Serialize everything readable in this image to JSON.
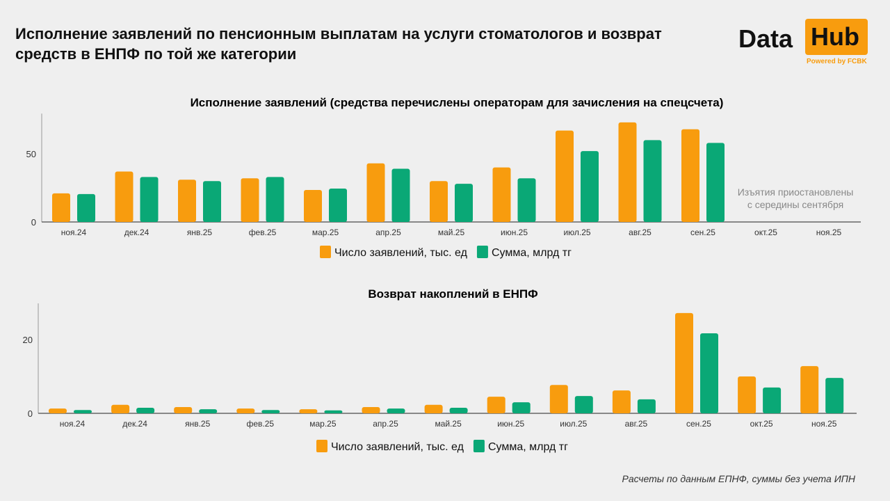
{
  "title": "Исполнение заявлений по пенсионным выплатам на услуги стоматологов и возврат средств в ЕНПФ по той же категории",
  "logo": {
    "left": "Data",
    "right": "Hub",
    "sub": "Powered by FCBK"
  },
  "colors": {
    "orange": "#f89c0e",
    "green": "#0aa876"
  },
  "footer": "Расчеты по данным ЕПНФ, суммы без учета ИПН",
  "chart_data": [
    {
      "type": "bar",
      "title": "Исполнение заявлений (средства перечислены операторам для зачисления на спецсчета)",
      "categories": [
        "ноя.24",
        "дек.24",
        "янв.25",
        "фев.25",
        "мар.25",
        "апр.25",
        "май.25",
        "июн.25",
        "июл.25",
        "авг.25",
        "сен.25",
        "окт.25",
        "ноя.25"
      ],
      "series": [
        {
          "name": "Число заявлений, тыс. ед",
          "values": [
            21,
            37,
            31,
            32,
            23.5,
            43,
            30,
            40,
            67,
            73,
            68,
            null,
            null
          ]
        },
        {
          "name": "Сумма, млрд тг",
          "values": [
            20.5,
            33,
            30,
            33,
            24.5,
            39,
            28,
            32,
            52,
            60,
            58,
            null,
            null
          ]
        }
      ],
      "yticks": [
        0,
        50
      ],
      "ylim": [
        0,
        80
      ],
      "legend": "bottom",
      "annotation": [
        "Изъятия приостановлены",
        "с середины сентября"
      ]
    },
    {
      "type": "bar",
      "title": "Возврат накоплений в ЕНПФ",
      "categories": [
        "ноя.24",
        "дек.24",
        "янв.25",
        "фев.25",
        "мар.25",
        "апр.25",
        "май.25",
        "июн.25",
        "июл.25",
        "авг.25",
        "сен.25",
        "окт.25",
        "ноя.25"
      ],
      "series": [
        {
          "name": "Число заявлений, тыс. ед",
          "values": [
            1.3,
            2.3,
            1.7,
            1.3,
            1.1,
            1.7,
            2.3,
            4.5,
            7.7,
            6.2,
            27.2,
            10,
            12.8
          ]
        },
        {
          "name": "Сумма, млрд тг",
          "values": [
            0.9,
            1.5,
            1.1,
            0.9,
            0.8,
            1.3,
            1.5,
            3.0,
            4.7,
            3.8,
            21.7,
            7,
            9.6
          ]
        }
      ],
      "yticks": [
        0,
        20
      ],
      "ylim": [
        0,
        30
      ],
      "legend": "bottom"
    }
  ]
}
